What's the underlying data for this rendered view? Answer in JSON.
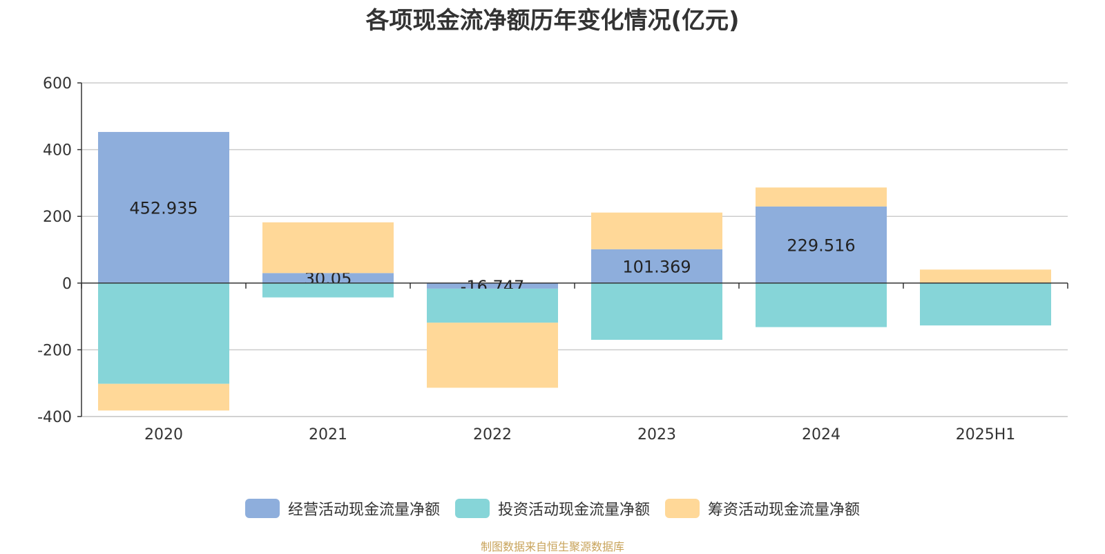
{
  "title": "各项现金流净额历年变化情况(亿元)",
  "source": "制图数据来自恒生聚源数据库",
  "chart_data": {
    "type": "bar",
    "stacked": true,
    "categories": [
      "2020",
      "2021",
      "2022",
      "2023",
      "2024",
      "2025H1"
    ],
    "ylim": [
      -400,
      600
    ],
    "yticks": [
      600,
      400,
      200,
      0,
      -200,
      -400
    ],
    "grid": true,
    "legend_position": "bottom",
    "series": [
      {
        "name": "经营活动现金流量净额",
        "color": "#8eaedc",
        "values": [
          452.935,
          30.05,
          -16.747,
          101.369,
          229.516,
          0.5
        ],
        "labels": [
          "452.935",
          "30.05",
          "-16.747",
          "101.369",
          "229.516",
          ""
        ]
      },
      {
        "name": "投资活动现金流量净额",
        "color": "#86d5d8",
        "values": [
          -302,
          -43,
          -102,
          -170,
          -132,
          -127
        ],
        "labels": []
      },
      {
        "name": "筹资活动现金流量净额",
        "color": "#ffd898",
        "values": [
          -80,
          152,
          -195,
          110,
          57,
          40
        ],
        "labels": []
      }
    ]
  }
}
